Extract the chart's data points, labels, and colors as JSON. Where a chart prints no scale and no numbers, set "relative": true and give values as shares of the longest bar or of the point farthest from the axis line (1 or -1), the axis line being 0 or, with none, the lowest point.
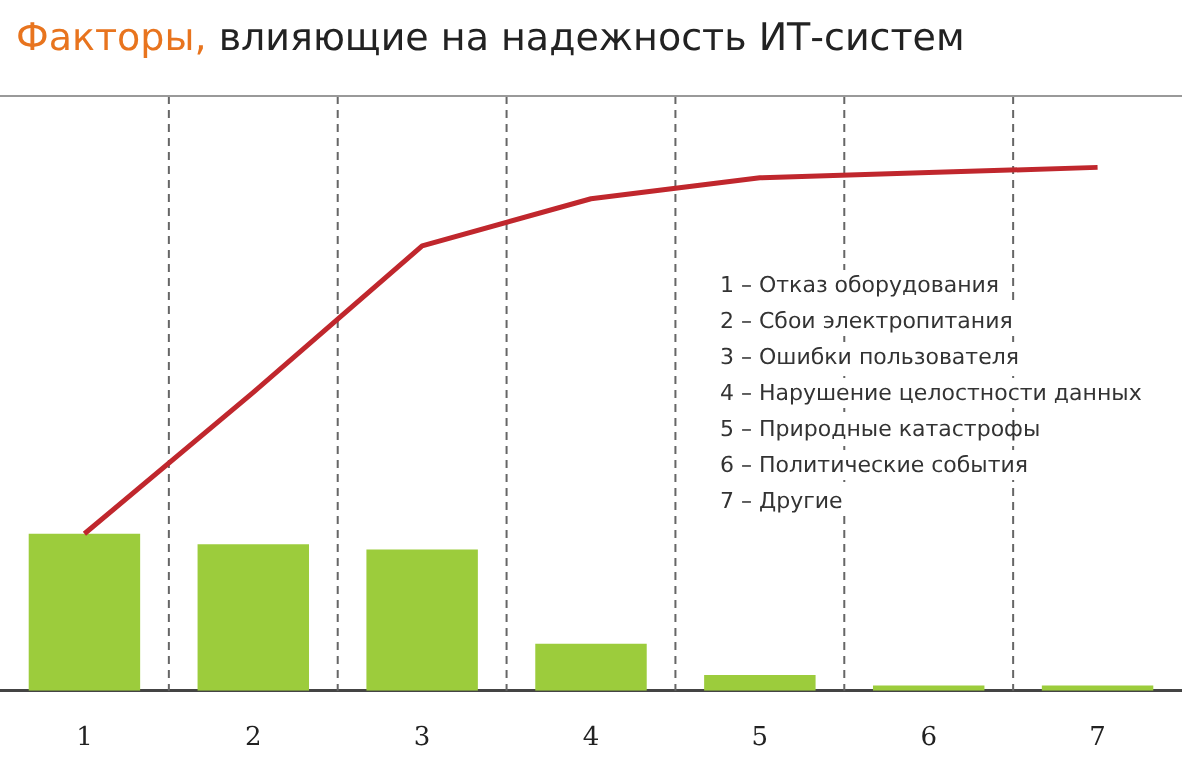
{
  "chart_data": {
    "type": "bar",
    "title": "Факторы, влияющие на надежность ИТ-систем",
    "relative": true,
    "categories": [
      "1",
      "2",
      "3",
      "4",
      "5",
      "6",
      "7"
    ],
    "series": [
      {
        "color": "#9ccc3c",
        "values": [
          0.3,
          0.28,
          0.27,
          0.09,
          0.03,
          0.01,
          0.01
        ]
      },
      {
        "type": "line",
        "color": "#c0272d",
        "values": [
          0.3,
          0.57,
          0.85,
          0.94,
          0.98,
          0.99,
          1
        ]
      }
    ],
    "marker": "none",
    "grid": "x",
    "annotations": [
      "1 – Отказ оборудования",
      "2 – Сбои электропитания",
      "3 – Ошибки пользователя",
      "4 – Нарушение целостности данных",
      "5 – Природные катастрофы",
      "6 – Политические события",
      "7 – Другие"
    ]
  }
}
